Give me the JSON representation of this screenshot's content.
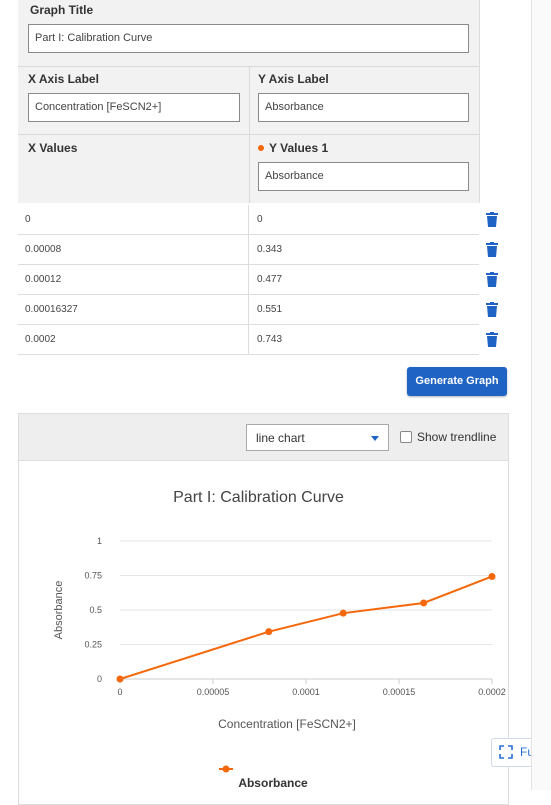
{
  "form": {
    "graph_title_label": "Graph Title",
    "graph_title_value": "Part I: Calibration Curve",
    "x_axis_label": "X Axis Label",
    "x_axis_value": "Concentration [FeSCN2+]",
    "y_axis_label": "Y Axis Label",
    "y_axis_value": "Absorbance",
    "x_values_label": "X Values",
    "y_values_label": "Y Values 1",
    "y_series_name": "Absorbance",
    "series_color": "#f4680b"
  },
  "rows": [
    {
      "x": "0",
      "y": "0"
    },
    {
      "x": "0.00008",
      "y": "0.343"
    },
    {
      "x": "0.00012",
      "y": "0.477"
    },
    {
      "x": "0.00016327",
      "y": "0.551"
    },
    {
      "x": "0.0002",
      "y": "0.743"
    }
  ],
  "generate_button": "Generate Graph",
  "chart_controls": {
    "type_select": "line chart",
    "show_trendline": "Show trendline",
    "fullscreen": "Fullsc"
  },
  "icons": {
    "delete": "trash-icon",
    "fullscreen": "fullscreen-icon",
    "dropdown": "chevron-down-icon"
  },
  "chart_data": {
    "type": "line",
    "title": "Part I: Calibration Curve",
    "xlabel": "Concentration [FeSCN2+]",
    "ylabel": "Absorbance",
    "x": [
      0,
      8e-05,
      0.00012,
      0.00016327,
      0.0002
    ],
    "series": [
      {
        "name": "Absorbance",
        "values": [
          0,
          0.343,
          0.477,
          0.551,
          0.743
        ],
        "color": "#f4680b"
      }
    ],
    "xlim": [
      0,
      0.0002
    ],
    "ylim": [
      0,
      1
    ],
    "x_ticks": [
      "0",
      "0.00005",
      "0.0001",
      "0.00015",
      "0.0002"
    ],
    "y_ticks": [
      "0",
      "0.25",
      "0.5",
      "0.75",
      "1"
    ],
    "grid": true,
    "legend_position": "bottom"
  }
}
